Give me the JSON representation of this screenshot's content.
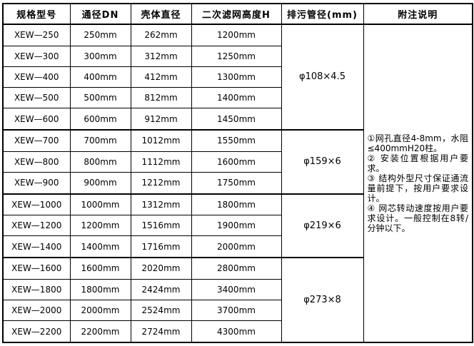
{
  "table": {
    "headers": [
      "规格型号",
      "通径DN",
      "壳体直径",
      "二次滤网高度H",
      "排污管径(mm)",
      "附注说明"
    ],
    "rows": [
      {
        "model": "XEW—250",
        "dn": "250mm",
        "shell": "262mm",
        "height": "1200mm"
      },
      {
        "model": "XEW—300",
        "dn": "300mm",
        "shell": "312mm",
        "height": "1250mm"
      },
      {
        "model": "XEW—400",
        "dn": "400mm",
        "shell": "412mm",
        "height": "1300mm"
      },
      {
        "model": "XEW—500",
        "dn": "500mm",
        "shell": "812mm",
        "height": "1400mm"
      },
      {
        "model": "XEW—600",
        "dn": "600mm",
        "shell": "912mm",
        "height": "1450mm"
      },
      {
        "model": "XEW—700",
        "dn": "700mm",
        "shell": "1012mm",
        "height": "1550mm"
      },
      {
        "model": "XEW—800",
        "dn": "800mm",
        "shell": "1112mm",
        "height": "1600mm"
      },
      {
        "model": "XEW—900",
        "dn": "900mm",
        "shell": "1212mm",
        "height": "1750mm"
      },
      {
        "model": "XEW—1000",
        "dn": "1000mm",
        "shell": "1312mm",
        "height": "1800mm"
      },
      {
        "model": "XEW—1200",
        "dn": "1200mm",
        "shell": "1516mm",
        "height": "1900mm"
      },
      {
        "model": "XEW—1400",
        "dn": "1400mm",
        "shell": "1716mm",
        "height": "2000mm"
      },
      {
        "model": "XEW—1600",
        "dn": "1600mm",
        "shell": "2020mm",
        "height": "2800mm"
      },
      {
        "model": "XEW—1800",
        "dn": "1800mm",
        "shell": "2424mm",
        "height": "3400mm"
      },
      {
        "model": "XEW—2000",
        "dn": "2000mm",
        "shell": "2524mm",
        "height": "3700mm"
      },
      {
        "model": "XEW—2200",
        "dn": "2200mm",
        "shell": "2724mm",
        "height": "4300mm"
      }
    ],
    "drain_groups": [
      {
        "label": "φ108×4.5",
        "span": 5
      },
      {
        "label": "φ159×6",
        "span": 3
      },
      {
        "label": "φ219×6",
        "span": 3
      },
      {
        "label": "φ273×8",
        "span": 4
      }
    ],
    "notes": [
      "①网孔直径4-8mm，水阻≤400mmH20柱。",
      "② 安装位置根据用户要求。",
      "③ 结构外型尺寸保证通流量前提下，按用户要求设计。",
      "④ 网芯转动速度按用户要求设计。一般控制在8转/分钟以下。"
    ]
  },
  "colors": {
    "border": "#000000",
    "text": "#000000",
    "cell_background": "#ffffff"
  }
}
